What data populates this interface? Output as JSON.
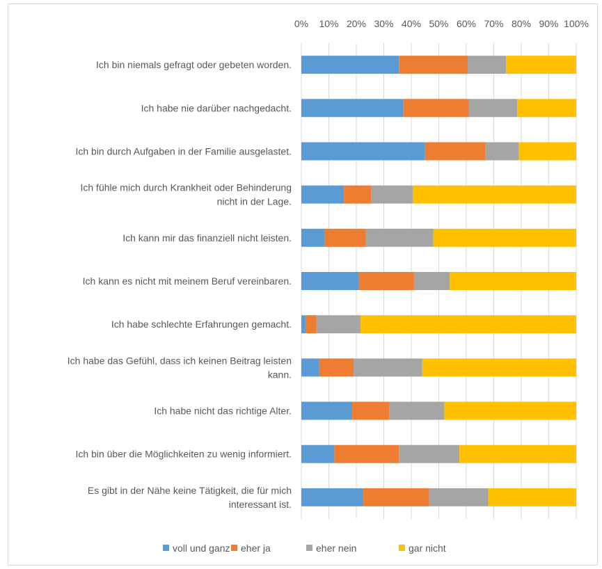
{
  "chart_data": {
    "type": "bar",
    "orientation": "horizontal",
    "stacked": "percent",
    "xlim": [
      0,
      100
    ],
    "x_ticks": [
      "0%",
      "10%",
      "20%",
      "30%",
      "40%",
      "50%",
      "60%",
      "70%",
      "80%",
      "90%",
      "100%"
    ],
    "axis_position": "top",
    "grid": true,
    "legend_position": "bottom",
    "categories": [
      [
        "Ich bin niemals gefragt oder gebeten worden."
      ],
      [
        "Ich habe nie darüber nachgedacht."
      ],
      [
        "Ich bin durch Aufgaben in der Familie ausgelastet."
      ],
      [
        "Ich fühle mich durch Krankheit oder Behinderung",
        "nicht in der Lage."
      ],
      [
        "Ich kann mir das finanziell nicht leisten."
      ],
      [
        "Ich kann es nicht mit meinem Beruf vereinbaren."
      ],
      [
        "Ich habe schlechte Erfahrungen gemacht."
      ],
      [
        "Ich habe das Gefühl, dass ich keinen Beitrag leisten",
        "kann."
      ],
      [
        "Ich habe nicht das richtige Alter."
      ],
      [
        "Ich bin über die Möglichkeiten zu wenig informiert."
      ],
      [
        "Es gibt in der Nähe keine Tätigkeit, die für mich",
        "interessant ist."
      ]
    ],
    "series": [
      {
        "name": "voll und ganz",
        "color": "#5b9bd5",
        "values": [
          35.5,
          37,
          45,
          15.5,
          8.5,
          21,
          1.5,
          6.5,
          18.5,
          12,
          22.5
        ]
      },
      {
        "name": "eher ja",
        "color": "#ed7d31",
        "values": [
          25,
          24,
          22,
          10,
          15,
          20,
          4,
          12.5,
          13.5,
          23.5,
          24
        ]
      },
      {
        "name": "eher nein",
        "color": "#a5a5a5",
        "values": [
          14,
          17.5,
          12,
          15,
          24.5,
          13,
          16,
          25,
          20,
          22,
          21.5
        ]
      },
      {
        "name": "gar nicht",
        "color": "#ffc000",
        "values": [
          25.5,
          21.5,
          21,
          59.5,
          52,
          46,
          78.5,
          56,
          48,
          42.5,
          32
        ]
      }
    ]
  }
}
